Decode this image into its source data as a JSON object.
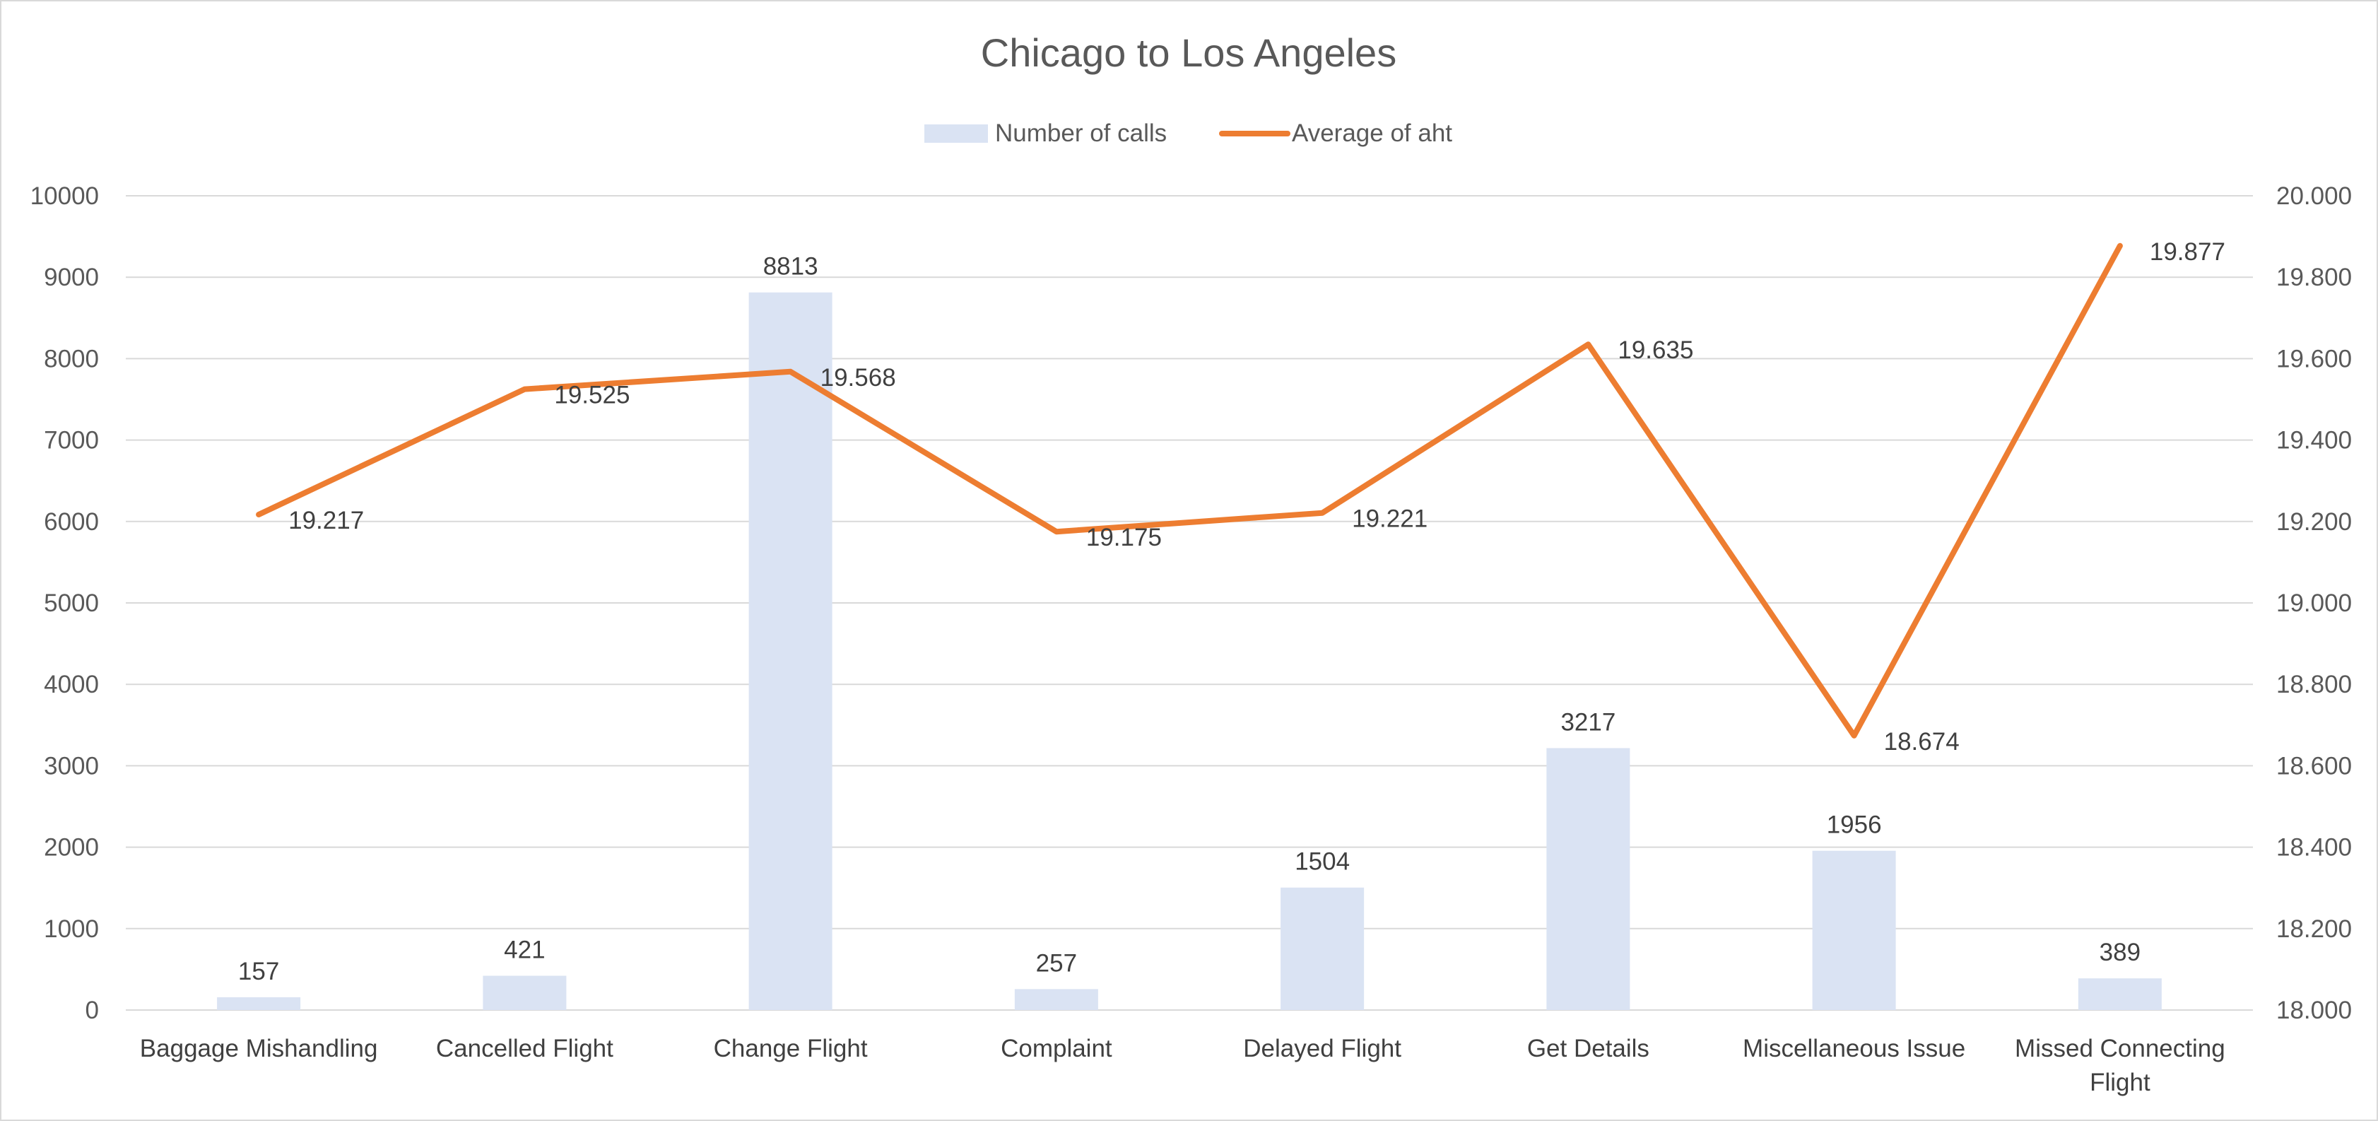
{
  "chart_data": {
    "type": "bar",
    "title": "Chicago to Los Angeles",
    "categories": [
      "Baggage Mishandling",
      "Cancelled Flight",
      "Change Flight",
      "Complaint",
      "Delayed Flight",
      "Get Details",
      "Miscellaneous Issue",
      "Missed Connecting Flight"
    ],
    "series": [
      {
        "name": "Number of calls",
        "type": "bar",
        "axis": "left",
        "color": "#dae3f3",
        "values": [
          157,
          421,
          8813,
          257,
          1504,
          3217,
          1956,
          389
        ],
        "labels": [
          "157",
          "421",
          "8813",
          "257",
          "1504",
          "3217",
          "1956",
          "389"
        ]
      },
      {
        "name": "Average of aht",
        "type": "line",
        "axis": "right",
        "color": "#ed7d31",
        "values": [
          19.217,
          19.525,
          19.568,
          19.175,
          19.221,
          19.635,
          18.674,
          19.877
        ],
        "labels": [
          "19.217",
          "19.525",
          "19.568",
          "19.175",
          "19.221",
          "19.635",
          "18.674",
          "19.877"
        ]
      }
    ],
    "y_left": {
      "min": 0,
      "max": 10000,
      "ticks": [
        "0",
        "1000",
        "2000",
        "3000",
        "4000",
        "5000",
        "6000",
        "7000",
        "8000",
        "9000",
        "10000"
      ]
    },
    "y_right": {
      "min": 18.0,
      "max": 20.0,
      "ticks": [
        "18.000",
        "18.200",
        "18.400",
        "18.600",
        "18.800",
        "19.000",
        "19.200",
        "19.400",
        "19.600",
        "19.800",
        "20.000"
      ]
    },
    "grid": true,
    "legend_position": "top",
    "gridline_color": "#d9d9d9"
  }
}
